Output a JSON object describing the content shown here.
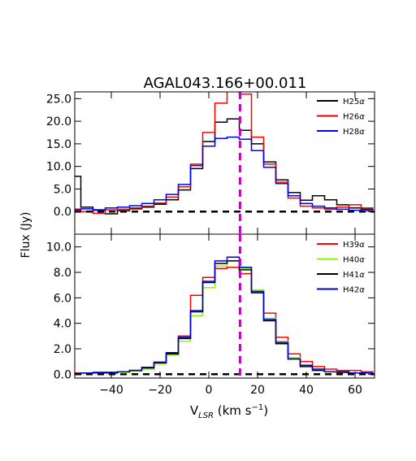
{
  "chart_data": [
    {
      "type": "line",
      "panel": "top",
      "title": "AGAL043.166+00.011",
      "xlabel": "",
      "ylabel": "Flux (Jy)",
      "xlim": [
        -55,
        68
      ],
      "ylim": [
        -5,
        26.5
      ],
      "yticks": [
        "0.0",
        "5.0",
        "10.0",
        "15.0",
        "20.0",
        "25.0"
      ],
      "ytick_values": [
        0,
        5,
        10,
        15,
        20,
        25
      ],
      "legend_position": "top-right",
      "reference_lines": [
        {
          "kind": "horizontal",
          "value": 0,
          "style": "dashed",
          "color": "#000000"
        },
        {
          "kind": "vertical",
          "value": 12.8,
          "style": "dashed",
          "color": "#bf00bf"
        }
      ],
      "series": [
        {
          "name": "H25α",
          "color": "#000000",
          "x": [
            -55,
            -50,
            -45,
            -40,
            -35,
            -30,
            -25,
            -20,
            -15,
            -10,
            -5,
            0,
            5,
            10,
            15,
            20,
            25,
            30,
            35,
            40,
            45,
            50,
            55,
            60,
            65
          ],
          "values": [
            7.8,
            1.0,
            0.3,
            -0.5,
            0.2,
            0.6,
            1.0,
            1.6,
            2.6,
            4.8,
            9.5,
            15.5,
            19.8,
            20.5,
            18.0,
            15.0,
            11.0,
            7.0,
            4.2,
            2.5,
            3.5,
            2.6,
            1.5,
            0.8,
            0.5
          ]
        },
        {
          "name": "H26α",
          "color": "#ff0000",
          "x": [
            -55,
            -50,
            -45,
            -40,
            -35,
            -30,
            -25,
            -20,
            -15,
            -10,
            -5,
            0,
            5,
            10,
            15,
            20,
            25,
            30,
            35,
            40,
            45,
            50,
            55,
            60,
            65
          ],
          "values": [
            0.3,
            0.0,
            -0.4,
            0.4,
            0.5,
            0.8,
            1.2,
            1.9,
            3.2,
            5.5,
            10.5,
            17.5,
            24.0,
            27.5,
            26.0,
            16.5,
            10.5,
            6.5,
            3.0,
            1.2,
            0.8,
            0.5,
            1.0,
            1.5,
            0.8
          ]
        },
        {
          "name": "H28α",
          "color": "#0000ff",
          "x": [
            -55,
            -50,
            -45,
            -40,
            -35,
            -30,
            -25,
            -20,
            -15,
            -10,
            -5,
            0,
            5,
            10,
            15,
            20,
            25,
            30,
            35,
            40,
            45,
            50,
            55,
            60,
            65
          ],
          "values": [
            0.5,
            0.6,
            0.4,
            0.8,
            1.0,
            1.3,
            1.8,
            2.6,
            3.8,
            6.0,
            10.2,
            14.5,
            16.2,
            16.5,
            16.0,
            13.5,
            9.8,
            6.2,
            3.5,
            1.8,
            1.2,
            0.8,
            0.5,
            0.3,
            0.2
          ]
        }
      ]
    },
    {
      "type": "line",
      "panel": "bottom",
      "title": "",
      "xlabel": "V_LSR (km s^-1)",
      "ylabel": "Flux (Jy)",
      "xlim": [
        -55,
        68
      ],
      "ylim": [
        -0.3,
        11
      ],
      "xticks": [
        "−40",
        "−20",
        "0",
        "20",
        "40",
        "60"
      ],
      "xtick_values": [
        -40,
        -20,
        0,
        20,
        40,
        60
      ],
      "yticks": [
        "0.0",
        "2.0",
        "4.0",
        "6.0",
        "8.0",
        "10.0"
      ],
      "ytick_values": [
        0,
        2,
        4,
        6,
        8,
        10
      ],
      "legend_position": "top-right",
      "reference_lines": [
        {
          "kind": "horizontal",
          "value": 0,
          "style": "dashed",
          "color": "#000000"
        },
        {
          "kind": "vertical",
          "value": 12.8,
          "style": "dashed",
          "color": "#bf00bf"
        }
      ],
      "series": [
        {
          "name": "H39α",
          "color": "#ff0000",
          "x": [
            -55,
            -50,
            -45,
            -40,
            -35,
            -30,
            -25,
            -20,
            -15,
            -10,
            -5,
            0,
            5,
            10,
            15,
            20,
            25,
            30,
            35,
            40,
            45,
            50,
            55,
            60,
            65
          ],
          "values": [
            0.1,
            0.1,
            0.1,
            0.15,
            0.2,
            0.3,
            0.5,
            0.9,
            1.6,
            3.0,
            6.2,
            7.6,
            8.3,
            8.4,
            7.9,
            6.6,
            4.8,
            2.9,
            1.6,
            1.0,
            0.6,
            0.4,
            0.3,
            0.3,
            0.2
          ]
        },
        {
          "name": "H40α",
          "color": "#7fff00",
          "x": [
            -55,
            -50,
            -45,
            -40,
            -35,
            -30,
            -25,
            -20,
            -15,
            -10,
            -5,
            0,
            5,
            10,
            15,
            20,
            25,
            30,
            35,
            40,
            45,
            50,
            55,
            60,
            65
          ],
          "values": [
            0.05,
            0.05,
            0.1,
            0.1,
            0.15,
            0.25,
            0.4,
            0.8,
            1.5,
            2.6,
            4.6,
            6.8,
            8.5,
            8.9,
            8.3,
            6.6,
            4.4,
            2.6,
            1.3,
            0.7,
            0.4,
            0.2,
            0.15,
            0.1,
            0.1
          ]
        },
        {
          "name": "H41α",
          "color": "#000000",
          "x": [
            -55,
            -50,
            -45,
            -40,
            -35,
            -30,
            -25,
            -20,
            -15,
            -10,
            -5,
            0,
            5,
            10,
            15,
            20,
            25,
            30,
            35,
            40,
            45,
            50,
            55,
            60,
            65
          ],
          "values": [
            0.05,
            0.1,
            0.15,
            0.1,
            0.2,
            0.3,
            0.5,
            0.9,
            1.6,
            2.8,
            4.9,
            7.2,
            8.7,
            8.9,
            8.2,
            6.4,
            4.2,
            2.4,
            1.2,
            0.6,
            0.3,
            0.2,
            0.15,
            0.1,
            0.1
          ]
        },
        {
          "name": "H42α",
          "color": "#0000cd",
          "x": [
            -55,
            -50,
            -45,
            -40,
            -35,
            -30,
            -25,
            -20,
            -15,
            -10,
            -5,
            0,
            5,
            10,
            15,
            20,
            25,
            30,
            35,
            40,
            45,
            50,
            55,
            60,
            65
          ],
          "values": [
            0.05,
            0.1,
            0.1,
            0.15,
            0.2,
            0.3,
            0.55,
            0.95,
            1.7,
            2.9,
            5.0,
            7.3,
            8.9,
            9.2,
            8.4,
            6.5,
            4.3,
            2.5,
            1.2,
            0.7,
            0.4,
            0.2,
            0.2,
            0.1,
            0.1
          ]
        }
      ]
    }
  ]
}
